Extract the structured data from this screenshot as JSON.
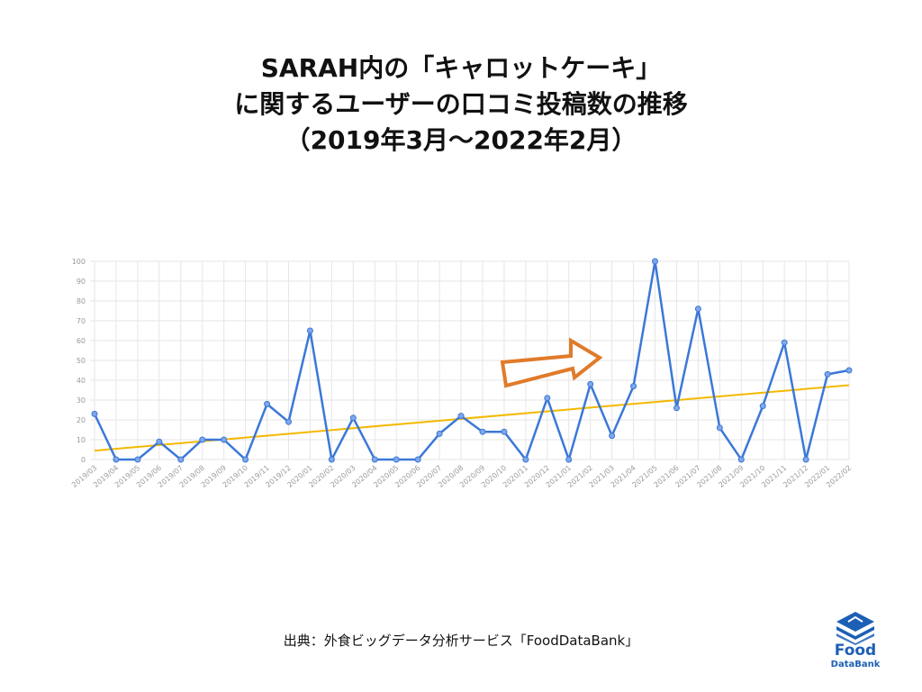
{
  "title": {
    "line1": "SARAH内の「キャロットケーキ」",
    "line2": "に関するユーザーの口コミ投稿数の推移",
    "line3": "（2019年3月〜2022年2月）"
  },
  "source": "出典：外食ビッグデータ分析サービス「FoodDataBank」",
  "logo": {
    "food": "Food",
    "databank": "DataBank",
    "icon": "stacked-layers-icon"
  },
  "colors": {
    "series": "#3b78d8",
    "trend": "#f5b800",
    "arrow": "#e07b2a",
    "grid": "#e6e6e6",
    "logo": "#1d5fb5"
  },
  "chart_data": {
    "type": "line",
    "x": [
      "2019/03",
      "2019/04",
      "2019/05",
      "2019/06",
      "2019/07",
      "2019/08",
      "2019/09",
      "2019/10",
      "2019/11",
      "2019/12",
      "2020/01",
      "2020/02",
      "2020/03",
      "2020/04",
      "2020/05",
      "2020/06",
      "2020/07",
      "2020/08",
      "2020/09",
      "2020/10",
      "2020/11",
      "2020/12",
      "2021/01",
      "2021/02",
      "2021/03",
      "2021/04",
      "2021/05",
      "2021/06",
      "2021/07",
      "2021/08",
      "2021/09",
      "2021/10",
      "2021/11",
      "2021/12",
      "2022/01",
      "2022/02"
    ],
    "series": [
      {
        "values": [
          23,
          0,
          0,
          9,
          0,
          10,
          10,
          0,
          28,
          19,
          65,
          0,
          21,
          0,
          0,
          0,
          13,
          22,
          14,
          14,
          0,
          31,
          0,
          38,
          12,
          37,
          100,
          26,
          76,
          16,
          0,
          27,
          59,
          0,
          43,
          45
        ]
      }
    ],
    "trendline": {
      "start": 4.5,
      "end": 37.5
    },
    "ylim": [
      0,
      100
    ],
    "yticks": [
      0,
      10,
      20,
      30,
      40,
      50,
      60,
      70,
      80,
      90,
      100
    ],
    "grid": true,
    "annotation": "orange-arrow-pointing-up-right"
  }
}
